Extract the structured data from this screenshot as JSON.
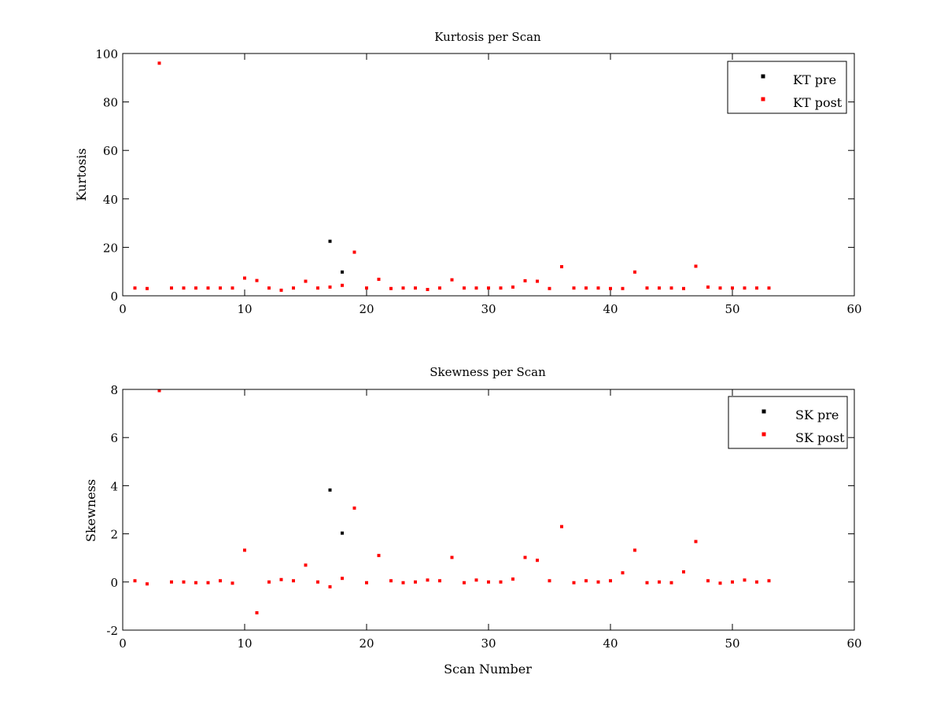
{
  "chart_data": [
    {
      "type": "scatter",
      "title": "Kurtosis per Scan",
      "xlabel": "",
      "ylabel": "Kurtosis",
      "xlim": [
        0,
        60
      ],
      "ylim": [
        0,
        100
      ],
      "xticks": [
        0,
        10,
        20,
        30,
        40,
        50,
        60
      ],
      "yticks": [
        0,
        20,
        40,
        60,
        80,
        100
      ],
      "grid": false,
      "legend_position": "top-right",
      "series": [
        {
          "name": "KT pre",
          "color": "#000000",
          "points": [
            [
              17,
              22.5
            ],
            [
              18,
              9.8
            ]
          ]
        },
        {
          "name": "KT post",
          "color": "#ff0000",
          "points": [
            [
              1,
              3.2
            ],
            [
              2,
              3.0
            ],
            [
              3,
              96
            ],
            [
              4,
              3.2
            ],
            [
              5,
              3.2
            ],
            [
              6,
              3.2
            ],
            [
              7,
              3.2
            ],
            [
              8,
              3.2
            ],
            [
              9,
              3.2
            ],
            [
              10,
              7.3
            ],
            [
              11,
              6.3
            ],
            [
              12,
              3.2
            ],
            [
              13,
              2.3
            ],
            [
              14,
              3.2
            ],
            [
              15,
              6.0
            ],
            [
              16,
              3.2
            ],
            [
              17,
              3.6
            ],
            [
              18,
              4.3
            ],
            [
              19,
              18.0
            ],
            [
              20,
              3.2
            ],
            [
              21,
              6.8
            ],
            [
              22,
              3.0
            ],
            [
              23,
              3.2
            ],
            [
              24,
              3.2
            ],
            [
              25,
              2.6
            ],
            [
              26,
              3.2
            ],
            [
              27,
              6.6
            ],
            [
              28,
              3.2
            ],
            [
              29,
              3.2
            ],
            [
              30,
              3.2
            ],
            [
              31,
              3.2
            ],
            [
              32,
              3.6
            ],
            [
              33,
              6.2
            ],
            [
              34,
              6.0
            ],
            [
              35,
              3.0
            ],
            [
              36,
              12.0
            ],
            [
              37,
              3.2
            ],
            [
              38,
              3.2
            ],
            [
              39,
              3.2
            ],
            [
              40,
              3.0
            ],
            [
              41,
              3.0
            ],
            [
              42,
              9.8
            ],
            [
              43,
              3.2
            ],
            [
              44,
              3.2
            ],
            [
              45,
              3.2
            ],
            [
              46,
              3.0
            ],
            [
              47,
              12.2
            ],
            [
              48,
              3.6
            ],
            [
              49,
              3.2
            ],
            [
              50,
              3.2
            ],
            [
              51,
              3.2
            ],
            [
              52,
              3.2
            ],
            [
              53,
              3.2
            ]
          ]
        }
      ]
    },
    {
      "type": "scatter",
      "title": "Skewness per Scan",
      "xlabel": "Scan Number",
      "ylabel": "Skewness",
      "xlim": [
        0,
        60
      ],
      "ylim": [
        -2,
        8
      ],
      "xticks": [
        0,
        10,
        20,
        30,
        40,
        50,
        60
      ],
      "yticks": [
        -2,
        0,
        2,
        4,
        6,
        8
      ],
      "grid": false,
      "legend_position": "top-right",
      "series": [
        {
          "name": "SK pre",
          "color": "#000000",
          "points": [
            [
              17,
              3.82
            ],
            [
              18,
              2.03
            ]
          ]
        },
        {
          "name": "SK post",
          "color": "#ff0000",
          "points": [
            [
              1,
              0.05
            ],
            [
              2,
              -0.08
            ],
            [
              3,
              7.95
            ],
            [
              4,
              0.0
            ],
            [
              5,
              0.0
            ],
            [
              6,
              -0.03
            ],
            [
              7,
              -0.03
            ],
            [
              8,
              0.05
            ],
            [
              9,
              -0.05
            ],
            [
              10,
              1.32
            ],
            [
              11,
              -1.28
            ],
            [
              12,
              0.0
            ],
            [
              13,
              0.1
            ],
            [
              14,
              0.05
            ],
            [
              15,
              0.7
            ],
            [
              16,
              0.0
            ],
            [
              17,
              -0.2
            ],
            [
              18,
              0.15
            ],
            [
              19,
              3.07
            ],
            [
              20,
              -0.03
            ],
            [
              21,
              1.1
            ],
            [
              22,
              0.05
            ],
            [
              23,
              -0.03
            ],
            [
              24,
              0.0
            ],
            [
              25,
              0.08
            ],
            [
              26,
              0.05
            ],
            [
              27,
              1.02
            ],
            [
              28,
              -0.03
            ],
            [
              29,
              0.08
            ],
            [
              30,
              0.0
            ],
            [
              31,
              0.0
            ],
            [
              32,
              0.12
            ],
            [
              33,
              1.02
            ],
            [
              34,
              0.9
            ],
            [
              35,
              0.05
            ],
            [
              36,
              2.3
            ],
            [
              37,
              -0.03
            ],
            [
              38,
              0.05
            ],
            [
              39,
              0.0
            ],
            [
              40,
              0.05
            ],
            [
              41,
              0.38
            ],
            [
              42,
              1.32
            ],
            [
              43,
              -0.03
            ],
            [
              44,
              0.0
            ],
            [
              45,
              -0.03
            ],
            [
              46,
              0.42
            ],
            [
              47,
              1.68
            ],
            [
              48,
              0.05
            ],
            [
              49,
              -0.05
            ],
            [
              50,
              0.0
            ],
            [
              51,
              0.08
            ],
            [
              52,
              0.0
            ],
            [
              53,
              0.05
            ]
          ]
        }
      ]
    }
  ]
}
